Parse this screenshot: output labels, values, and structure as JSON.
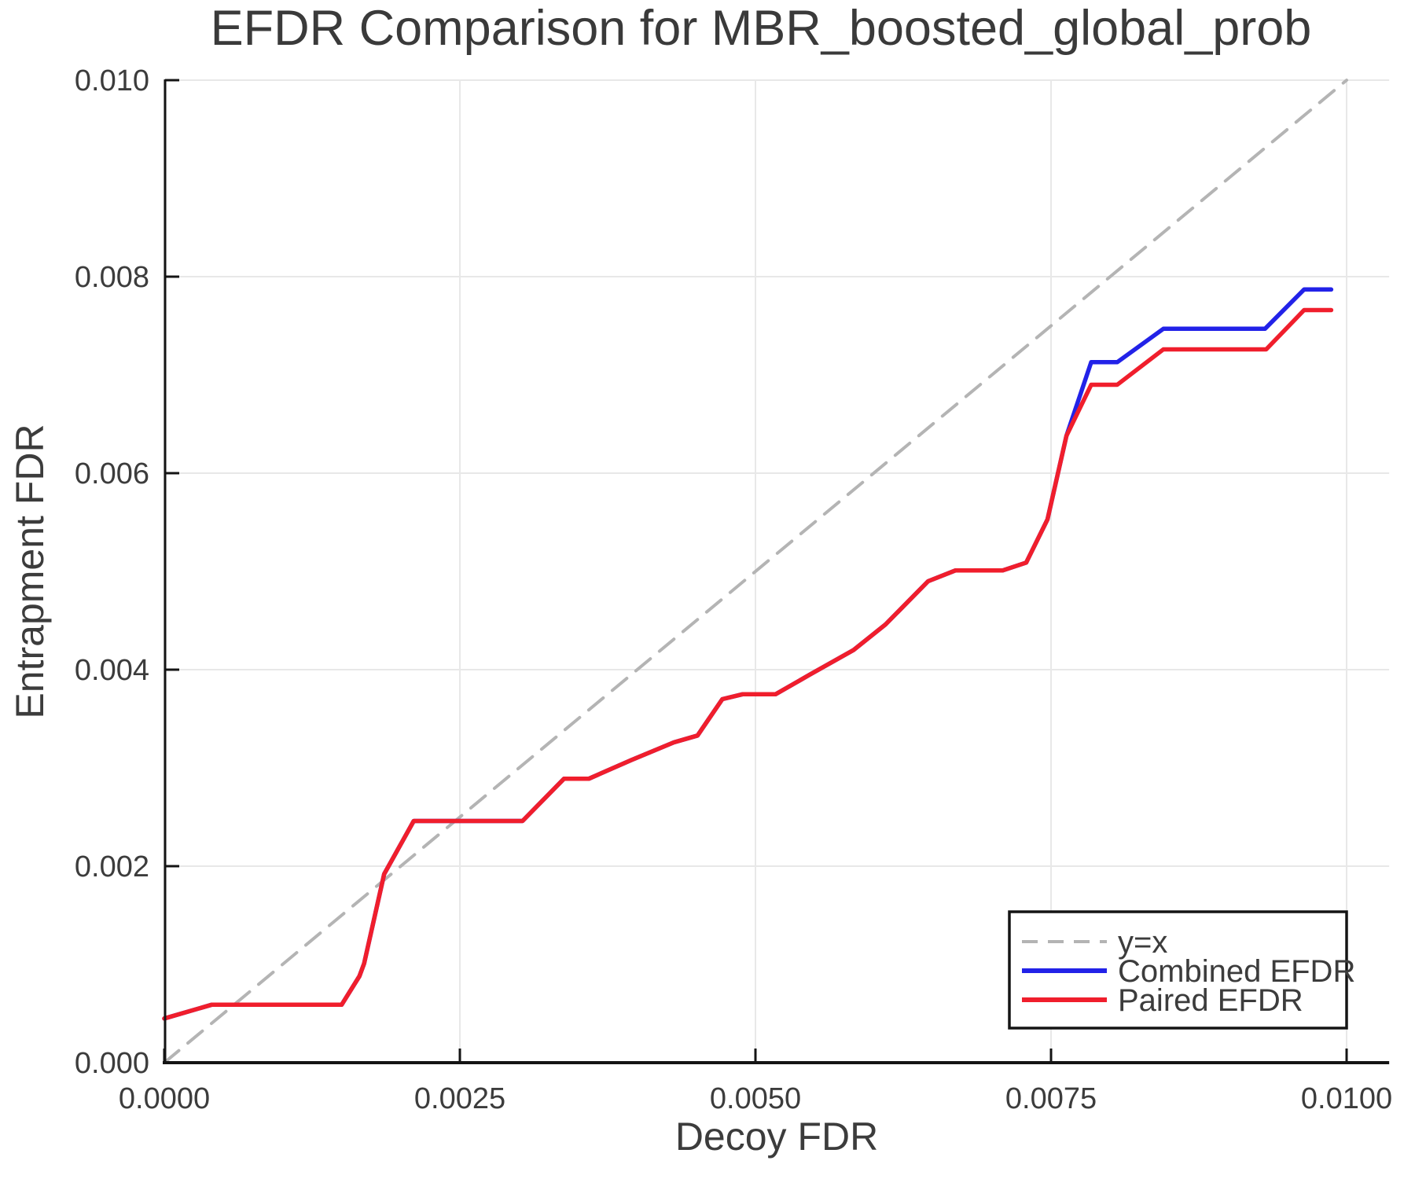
{
  "colors": {
    "background": "#ffffff",
    "grid": "#e8e8e8",
    "spine": "#141414",
    "text": "#3c3c3c",
    "identity_line": "#b4b4b4",
    "combined": "#2222e8",
    "paired": "#f01e2c"
  },
  "chart_data": {
    "type": "line",
    "title": "EFDR Comparison for MBR_boosted_global_prob",
    "xlabel": "Decoy FDR",
    "ylabel": "Entrapment FDR",
    "xlim": [
      0,
      0.01036
    ],
    "ylim": [
      0,
      0.01
    ],
    "grid": true,
    "legend_position": "lower right",
    "x_ticks": {
      "values": [
        0.0,
        0.0025,
        0.005,
        0.0075,
        0.01
      ],
      "labels": [
        "0.0000",
        "0.0025",
        "0.0050",
        "0.0075",
        "0.0100"
      ]
    },
    "y_ticks": {
      "values": [
        0.0,
        0.002,
        0.004,
        0.006,
        0.008,
        0.01
      ],
      "labels": [
        "0.000",
        "0.002",
        "0.004",
        "0.006",
        "0.008",
        "0.010"
      ]
    },
    "series": [
      {
        "name": "y=x",
        "style": "dashed",
        "color": "#b4b4b4",
        "width": 4,
        "dash": "24 15",
        "points": [
          [
            0.0,
            0.0
          ],
          [
            0.01,
            0.01
          ]
        ]
      },
      {
        "name": "Combined EFDR",
        "style": "solid",
        "color": "#2222e8",
        "width": 5.5,
        "points": [
          [
            0.0,
            0.00045
          ],
          [
            0.0004,
            0.00059
          ],
          [
            0.0015,
            0.00059
          ],
          [
            0.00165,
            0.00088
          ],
          [
            0.00169,
            0.00101
          ],
          [
            0.00186,
            0.00192
          ],
          [
            0.00211,
            0.00246
          ],
          [
            0.00303,
            0.00246
          ],
          [
            0.00338,
            0.00289
          ],
          [
            0.00359,
            0.00289
          ],
          [
            0.00395,
            0.00308
          ],
          [
            0.00431,
            0.00326
          ],
          [
            0.00451,
            0.00333
          ],
          [
            0.00472,
            0.0037
          ],
          [
            0.00489,
            0.00375
          ],
          [
            0.00517,
            0.00375
          ],
          [
            0.00546,
            0.00395
          ],
          [
            0.00583,
            0.0042
          ],
          [
            0.0061,
            0.00446
          ],
          [
            0.00646,
            0.0049
          ],
          [
            0.00669,
            0.00501
          ],
          [
            0.00709,
            0.00501
          ],
          [
            0.00729,
            0.00509
          ],
          [
            0.00747,
            0.00553
          ],
          [
            0.00763,
            0.00638
          ],
          [
            0.00784,
            0.00713
          ],
          [
            0.00806,
            0.00713
          ],
          [
            0.00845,
            0.00747
          ],
          [
            0.00931,
            0.00747
          ],
          [
            0.00964,
            0.00787
          ],
          [
            0.00987,
            0.00787
          ]
        ]
      },
      {
        "name": "Paired EFDR",
        "style": "solid",
        "color": "#f01e2c",
        "width": 5.5,
        "points": [
          [
            0.0,
            0.00045
          ],
          [
            0.0004,
            0.00059
          ],
          [
            0.0015,
            0.00059
          ],
          [
            0.00165,
            0.00088
          ],
          [
            0.00169,
            0.00101
          ],
          [
            0.00186,
            0.00192
          ],
          [
            0.00211,
            0.00246
          ],
          [
            0.00303,
            0.00246
          ],
          [
            0.00338,
            0.00289
          ],
          [
            0.00359,
            0.00289
          ],
          [
            0.00395,
            0.00308
          ],
          [
            0.00431,
            0.00326
          ],
          [
            0.00451,
            0.00333
          ],
          [
            0.00472,
            0.0037
          ],
          [
            0.00489,
            0.00375
          ],
          [
            0.00517,
            0.00375
          ],
          [
            0.00546,
            0.00395
          ],
          [
            0.00583,
            0.0042
          ],
          [
            0.0061,
            0.00446
          ],
          [
            0.00646,
            0.0049
          ],
          [
            0.00669,
            0.00501
          ],
          [
            0.00709,
            0.00501
          ],
          [
            0.00729,
            0.00509
          ],
          [
            0.00747,
            0.00553
          ],
          [
            0.00763,
            0.00638
          ],
          [
            0.00784,
            0.0069
          ],
          [
            0.00806,
            0.0069
          ],
          [
            0.00845,
            0.00726
          ],
          [
            0.00932,
            0.00726
          ],
          [
            0.00964,
            0.00766
          ],
          [
            0.00987,
            0.00766
          ]
        ]
      }
    ]
  }
}
